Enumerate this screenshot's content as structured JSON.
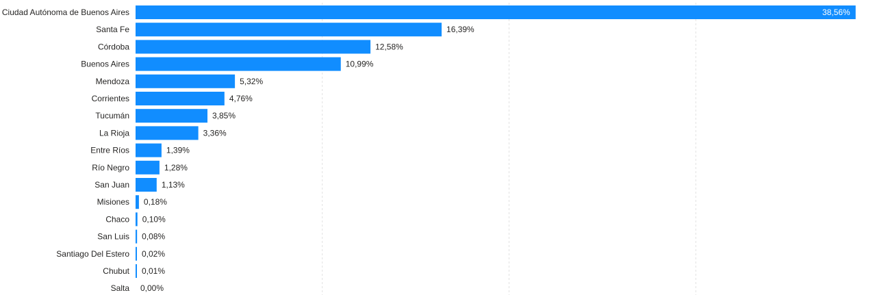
{
  "chart_data": {
    "type": "bar",
    "orientation": "horizontal",
    "title": "",
    "xlabel": "",
    "ylabel": "",
    "xlim": [
      0,
      40
    ],
    "grid": true,
    "legend": "none",
    "bar_color": "#118DFF",
    "categories": [
      "Ciudad Autónoma de Buenos Aires",
      "Santa Fe",
      "Córdoba",
      "Buenos Aires",
      "Mendoza",
      "Corrientes",
      "Tucumán",
      "La Rioja",
      "Entre Ríos",
      "Río Negro",
      "San Juan",
      "Misiones",
      "Chaco",
      "San Luis",
      "Santiago Del Estero",
      "Chubut",
      "Salta"
    ],
    "values": [
      38.56,
      16.39,
      12.58,
      10.99,
      5.32,
      4.76,
      3.85,
      3.36,
      1.39,
      1.28,
      1.13,
      0.18,
      0.1,
      0.08,
      0.02,
      0.01,
      0.0
    ],
    "data_labels": [
      "38,56%",
      "16,39%",
      "12,58%",
      "10,99%",
      "5,32%",
      "4,76%",
      "3,85%",
      "3,36%",
      "1,39%",
      "1,28%",
      "1,13%",
      "0,18%",
      "0,10%",
      "0,08%",
      "0,02%",
      "0,01%",
      "0,00%"
    ]
  }
}
